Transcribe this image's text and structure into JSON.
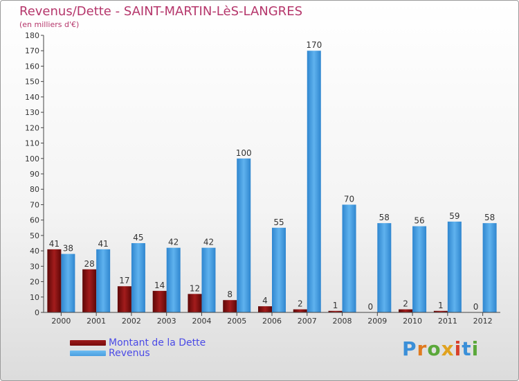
{
  "title": "Revenus/Dette - SAINT-MARTIN-LèS-LANGRES",
  "subtitle": "(en milliers d'€)",
  "logo": "Proxiti",
  "colors": {
    "dette": "#7a0b0b",
    "revenus": "#4a9ee0",
    "axis": "#444444",
    "grid": "#dddddd"
  },
  "chart_data": {
    "type": "bar",
    "categories": [
      "2000",
      "2001",
      "2002",
      "2003",
      "2004",
      "2005",
      "2006",
      "2007",
      "2008",
      "2009",
      "2010",
      "2011",
      "2012"
    ],
    "series": [
      {
        "name": "Montant de la Dette",
        "values": [
          41,
          28,
          17,
          14,
          12,
          8,
          4,
          2,
          1,
          0,
          2,
          1,
          0
        ]
      },
      {
        "name": "Revenus",
        "values": [
          38,
          41,
          45,
          42,
          42,
          100,
          55,
          170,
          70,
          58,
          56,
          59,
          58
        ]
      }
    ],
    "ylim": [
      0,
      180
    ],
    "yticks": [
      0,
      10,
      20,
      30,
      40,
      50,
      60,
      70,
      80,
      90,
      100,
      110,
      120,
      130,
      140,
      150,
      160,
      170,
      180
    ],
    "legend_position": "bottom-left",
    "grid": false
  }
}
